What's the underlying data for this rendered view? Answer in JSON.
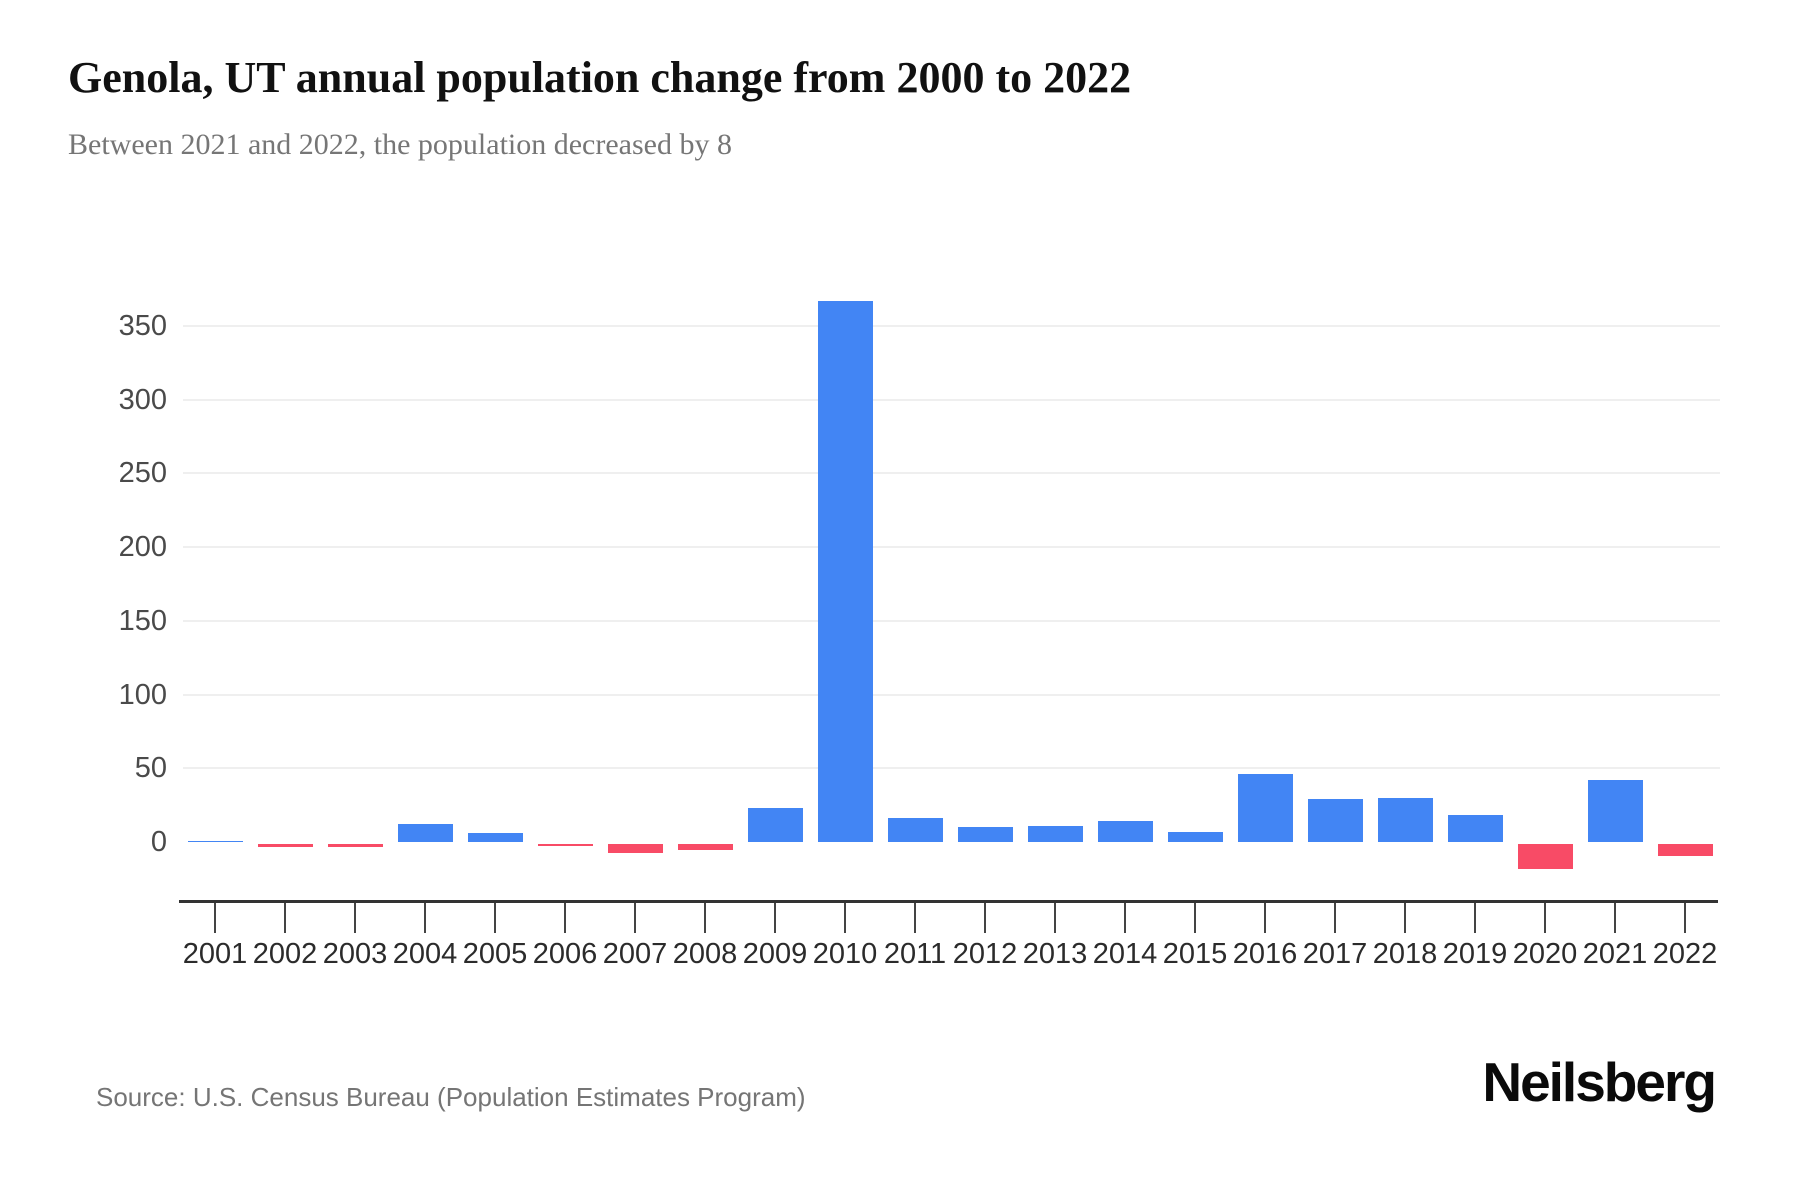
{
  "header": {
    "title": "Genola, UT annual population change from 2000 to 2022",
    "subtitle": "Between 2021 and 2022, the population decreased by 8"
  },
  "footer": {
    "source": "Source: U.S. Census Bureau (Population Estimates Program)",
    "brand": "Neilsberg"
  },
  "chart_data": {
    "type": "bar",
    "title": "Genola, UT annual population change from 2000 to 2022",
    "categories": [
      "2001",
      "2002",
      "2003",
      "2004",
      "2005",
      "2006",
      "2007",
      "2008",
      "2009",
      "2010",
      "2011",
      "2012",
      "2013",
      "2014",
      "2015",
      "2016",
      "2017",
      "2018",
      "2019",
      "2020",
      "2021",
      "2022"
    ],
    "values": [
      1,
      -2,
      -2,
      12,
      6,
      -1,
      -6,
      -4,
      23,
      367,
      16,
      10,
      11,
      14,
      7,
      46,
      29,
      30,
      18,
      -17,
      42,
      -8
    ],
    "xlabel": "",
    "ylabel": "",
    "yticks": [
      0,
      50,
      100,
      150,
      200,
      250,
      300,
      350
    ],
    "ylim": [
      -25,
      380
    ],
    "grid": true,
    "legend": false,
    "positive_color": "#4285F4",
    "negative_color": "#F84B66",
    "gridline_color": "#efefef",
    "axis_color": "#333333"
  }
}
